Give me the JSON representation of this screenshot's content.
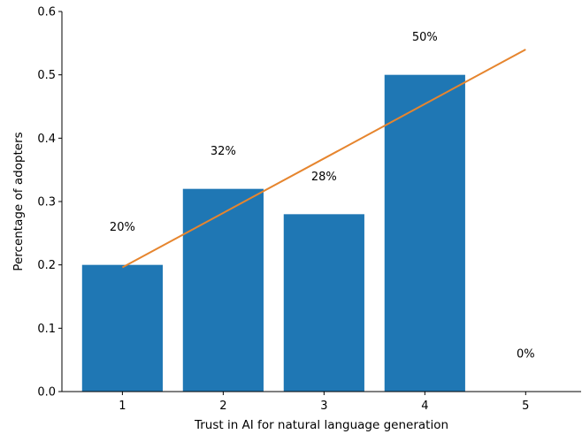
{
  "chart_data": {
    "type": "bar",
    "title": "",
    "xlabel": "Trust in AI for natural language generation",
    "ylabel": "Percentage of adopters",
    "categories": [
      "1",
      "2",
      "3",
      "4",
      "5"
    ],
    "x": [
      1,
      2,
      3,
      4,
      5
    ],
    "values": [
      0.2,
      0.32,
      0.28,
      0.5,
      0.0
    ],
    "data_labels": [
      "20%",
      "32%",
      "28%",
      "50%",
      "0%"
    ],
    "trend_line": {
      "x": [
        1,
        5
      ],
      "y": [
        0.196,
        0.54
      ]
    },
    "xlim": [
      0.4,
      5.55
    ],
    "ylim": [
      0,
      0.6
    ],
    "yticks": [
      0.0,
      0.1,
      0.2,
      0.3,
      0.4,
      0.5,
      0.6
    ],
    "ytick_labels": [
      "0.0",
      "0.1",
      "0.2",
      "0.3",
      "0.4",
      "0.5",
      "0.6"
    ],
    "grid": false,
    "spines": [
      "left",
      "bottom"
    ],
    "colors": {
      "bar": "#1f77b4",
      "trend": "#e6852e",
      "axis": "#000000"
    }
  }
}
